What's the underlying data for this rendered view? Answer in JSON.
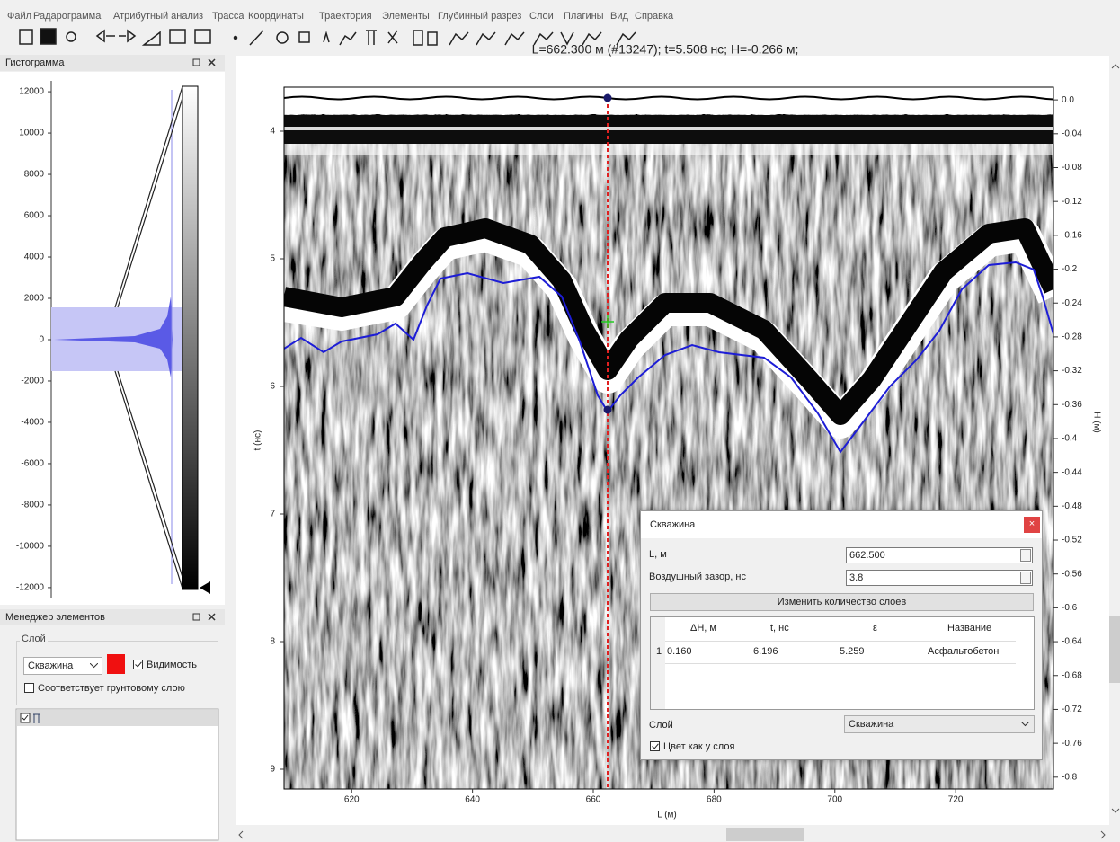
{
  "menu": [
    "Файл",
    "Радарограмма",
    "Атрибутный анализ",
    "Трасса",
    "Координаты",
    "Траектория",
    "Элементы",
    "Глубинный разрез",
    "Слои",
    "Плагины",
    "Вид",
    "Справка"
  ],
  "histogram_panel": {
    "title": "Гистограмма",
    "ylim": [
      12960,
      -12700
    ],
    "yticks": [
      12000,
      10000,
      8000,
      6000,
      4000,
      2000,
      0,
      -2000,
      -4000,
      -6000,
      -8000,
      -10000,
      -12000
    ]
  },
  "element_manager": {
    "title": "Менеджер элементов",
    "group_label": "Слой",
    "layer": "Скважина",
    "visibility": "Видимость",
    "ground_layer": "Соответствует грунтовому слою"
  },
  "radargram": {
    "status": "L=662.300 м (#13247); t=5.508 нс; H=-0.266 м;",
    "t_axis": {
      "label": "t (нс)",
      "lim": [
        3.655,
        9.155
      ],
      "ticks": [
        4,
        5,
        6,
        7,
        8,
        9
      ]
    },
    "h_axis": {
      "label": "H (м)",
      "lim": [
        0.015,
        -0.814
      ],
      "ticks": [
        {
          "value": 0,
          "label": "0.0"
        },
        -0.04,
        -0.08,
        -0.12,
        -0.16,
        -0.2,
        -0.24,
        -0.28,
        -0.32,
        -0.36,
        -0.4,
        -0.44,
        -0.48,
        -0.52,
        -0.56,
        -0.6,
        -0.64,
        -0.68,
        -0.72,
        -0.76,
        -0.8
      ]
    },
    "l_axis": {
      "label": "L (м)",
      "lim": [
        608.8,
        736.2
      ],
      "ticks": [
        620,
        640,
        660,
        680,
        700,
        720
      ]
    }
  },
  "dialog": {
    "title": "Скважина",
    "fields": [
      {
        "label": "L, м",
        "value": "662.500"
      },
      {
        "label": "Воздушный зазор, нс",
        "value": "3.8"
      }
    ],
    "button": "Изменить количество слоев",
    "table": {
      "headers": [
        "ΔH, м",
        "t, нс",
        "ε",
        "Название"
      ],
      "rows": [
        [
          "1",
          "0.160",
          "6.196",
          "5.259",
          "Асфальтобетон"
        ]
      ]
    },
    "layer_label": "Слой",
    "layer": "Скважина",
    "color_checkbox": "Цвет как у слоя"
  }
}
